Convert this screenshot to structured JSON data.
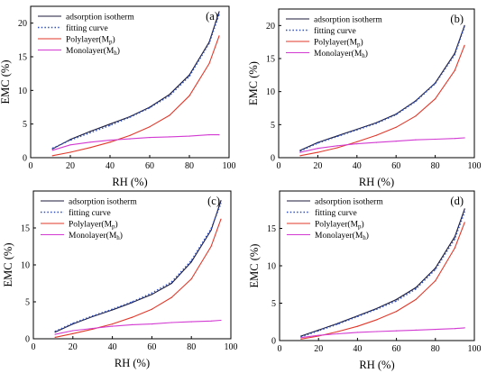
{
  "chart_data": [
    {
      "type": "line",
      "panel_label": "(a)",
      "xlabel": "RH (%)",
      "ylabel": "EMC (%)",
      "xlim": [
        0,
        100
      ],
      "ylim": [
        0,
        22.5
      ],
      "xticks": [
        0,
        20,
        40,
        60,
        80,
        100
      ],
      "yticks": [
        0,
        5,
        10,
        15,
        20
      ],
      "legend_position": "top-left",
      "grid": false,
      "series": [
        {
          "name": "adsorption isotherm",
          "color": "#1a1a3a",
          "dash": "solid",
          "x": [
            11,
            20,
            30,
            40,
            50,
            60,
            70,
            80,
            90,
            95
          ],
          "y": [
            1.3,
            2.7,
            3.9,
            5.0,
            6.1,
            7.5,
            9.4,
            12.3,
            17.2,
            21.7
          ]
        },
        {
          "name": "fitting curve",
          "color": "#3050c0",
          "dash": "dotted",
          "x": [
            11,
            20,
            30,
            40,
            50,
            60,
            70,
            80,
            90,
            95
          ],
          "y": [
            1.4,
            2.6,
            3.7,
            4.8,
            6.0,
            7.4,
            9.2,
            12.1,
            17.0,
            21.3
          ]
        },
        {
          "name": "Polylayer(M_p)",
          "name_base": "Polylayer(M",
          "name_sub": "p",
          "name_close": ")",
          "color": "#e0392b",
          "dash": "solid",
          "x": [
            11,
            20,
            30,
            40,
            50,
            60,
            70,
            80,
            90,
            95
          ],
          "y": [
            0.3,
            0.8,
            1.5,
            2.3,
            3.3,
            4.6,
            6.3,
            9.2,
            14.0,
            18.1
          ]
        },
        {
          "name": "Monolayer(M_h)",
          "name_base": "Monolayer(M",
          "name_sub": "h",
          "name_close": ")",
          "color": "#d23ad2",
          "dash": "solid",
          "x": [
            11,
            20,
            30,
            40,
            50,
            60,
            70,
            80,
            90,
            95
          ],
          "y": [
            1.1,
            1.9,
            2.3,
            2.6,
            2.8,
            3.0,
            3.1,
            3.2,
            3.4,
            3.4
          ]
        }
      ]
    },
    {
      "type": "line",
      "panel_label": "(b)",
      "xlabel": "RH (%)",
      "ylabel": "EMC (%)",
      "xlim": [
        0,
        100
      ],
      "ylim": [
        0,
        22.5
      ],
      "xticks": [
        0,
        20,
        40,
        60,
        80,
        100
      ],
      "yticks": [
        0,
        5,
        10,
        15,
        20
      ],
      "legend_position": "top-left",
      "grid": false,
      "series": [
        {
          "name": "adsorption isotherm",
          "color": "#1a1a3a",
          "dash": "solid",
          "x": [
            11,
            20,
            30,
            40,
            50,
            60,
            70,
            80,
            90,
            95
          ],
          "y": [
            1.1,
            2.3,
            3.3,
            4.3,
            5.3,
            6.6,
            8.6,
            11.3,
            15.8,
            20.0
          ]
        },
        {
          "name": "fitting curve",
          "color": "#3050c0",
          "dash": "dotted",
          "x": [
            11,
            20,
            30,
            40,
            50,
            60,
            70,
            80,
            90,
            95
          ],
          "y": [
            1.0,
            2.2,
            3.2,
            4.2,
            5.2,
            6.5,
            8.5,
            11.2,
            15.6,
            19.8
          ]
        },
        {
          "name": "Polylayer(M_p)",
          "name_base": "Polylayer(M",
          "name_sub": "p",
          "name_close": ")",
          "color": "#e0392b",
          "dash": "solid",
          "x": [
            11,
            20,
            30,
            40,
            50,
            60,
            70,
            80,
            90,
            95
          ],
          "y": [
            0.3,
            0.8,
            1.5,
            2.4,
            3.4,
            4.6,
            6.3,
            8.9,
            13.2,
            17.0
          ]
        },
        {
          "name": "Monolayer(M_h)",
          "name_base": "Monolayer(M",
          "name_sub": "h",
          "name_close": ")",
          "color": "#d23ad2",
          "dash": "solid",
          "x": [
            11,
            20,
            30,
            40,
            50,
            60,
            70,
            80,
            90,
            95
          ],
          "y": [
            0.8,
            1.4,
            1.8,
            2.1,
            2.3,
            2.5,
            2.7,
            2.8,
            2.9,
            3.0
          ]
        }
      ]
    },
    {
      "type": "line",
      "panel_label": "(c)",
      "xlabel": "RH (%)",
      "ylabel": "EMC (%)",
      "xlim": [
        0,
        100
      ],
      "ylim": [
        0,
        20
      ],
      "xticks": [
        0,
        20,
        40,
        60,
        80,
        100
      ],
      "yticks": [
        0,
        5,
        10,
        15
      ],
      "legend_position": "top-left",
      "grid": false,
      "series": [
        {
          "name": "adsorption isotherm",
          "color": "#1a1a3a",
          "dash": "solid",
          "x": [
            11,
            20,
            30,
            40,
            50,
            60,
            70,
            80,
            90,
            95
          ],
          "y": [
            0.9,
            2.0,
            3.0,
            3.9,
            4.9,
            6.0,
            7.5,
            10.4,
            14.7,
            18.7
          ]
        },
        {
          "name": "fitting curve",
          "color": "#3050c0",
          "dash": "dotted",
          "x": [
            11,
            20,
            30,
            40,
            50,
            60,
            70,
            80,
            90,
            95
          ],
          "y": [
            1.0,
            2.1,
            3.1,
            4.0,
            5.0,
            6.2,
            7.7,
            10.6,
            14.9,
            18.3
          ]
        },
        {
          "name": "Polylayer(M_p)",
          "name_base": "Polylayer(M",
          "name_sub": "p",
          "name_close": ")",
          "color": "#e0392b",
          "dash": "solid",
          "x": [
            11,
            20,
            30,
            40,
            50,
            60,
            70,
            80,
            90,
            95
          ],
          "y": [
            0.2,
            0.7,
            1.3,
            2.0,
            2.9,
            4.0,
            5.6,
            8.1,
            12.5,
            16.2
          ]
        },
        {
          "name": "Monolayer(M_h)",
          "name_base": "Monolayer(M",
          "name_sub": "h",
          "name_close": ")",
          "color": "#d23ad2",
          "dash": "solid",
          "x": [
            11,
            20,
            30,
            40,
            50,
            60,
            70,
            80,
            90,
            95
          ],
          "y": [
            0.6,
            1.1,
            1.4,
            1.7,
            1.9,
            2.0,
            2.2,
            2.3,
            2.4,
            2.5
          ]
        }
      ]
    },
    {
      "type": "line",
      "panel_label": "(d)",
      "xlabel": "RH (%)",
      "ylabel": "EMC (%)",
      "xlim": [
        0,
        100
      ],
      "ylim": [
        0,
        20
      ],
      "xticks": [
        0,
        20,
        40,
        60,
        80,
        100
      ],
      "yticks": [
        0,
        5,
        10,
        15
      ],
      "legend_position": "top-left",
      "grid": false,
      "series": [
        {
          "name": "adsorption isotherm",
          "color": "#1a1a3a",
          "dash": "solid",
          "x": [
            11,
            20,
            30,
            40,
            50,
            60,
            70,
            80,
            90,
            95
          ],
          "y": [
            0.6,
            1.4,
            2.3,
            3.3,
            4.3,
            5.5,
            7.1,
            9.7,
            13.9,
            17.6
          ]
        },
        {
          "name": "fitting curve",
          "color": "#3050c0",
          "dash": "dotted",
          "x": [
            11,
            20,
            30,
            40,
            50,
            60,
            70,
            80,
            90,
            95
          ],
          "y": [
            0.5,
            1.3,
            2.2,
            3.2,
            4.2,
            5.3,
            6.9,
            9.5,
            13.6,
            17.2
          ]
        },
        {
          "name": "Polylayer(M_p)",
          "name_base": "Polylayer(M",
          "name_sub": "p",
          "name_close": ")",
          "color": "#e0392b",
          "dash": "solid",
          "x": [
            11,
            20,
            30,
            40,
            50,
            60,
            70,
            80,
            90,
            95
          ],
          "y": [
            0.2,
            0.6,
            1.2,
            1.9,
            2.8,
            3.9,
            5.5,
            8.0,
            12.4,
            15.8
          ]
        },
        {
          "name": "Monolayer(M_h)",
          "name_base": "Monolayer(M",
          "name_sub": "h",
          "name_close": ")",
          "color": "#d23ad2",
          "dash": "solid",
          "x": [
            11,
            20,
            30,
            40,
            50,
            60,
            70,
            80,
            90,
            95
          ],
          "y": [
            0.4,
            0.7,
            0.9,
            1.1,
            1.2,
            1.3,
            1.4,
            1.5,
            1.6,
            1.7
          ]
        }
      ]
    }
  ]
}
